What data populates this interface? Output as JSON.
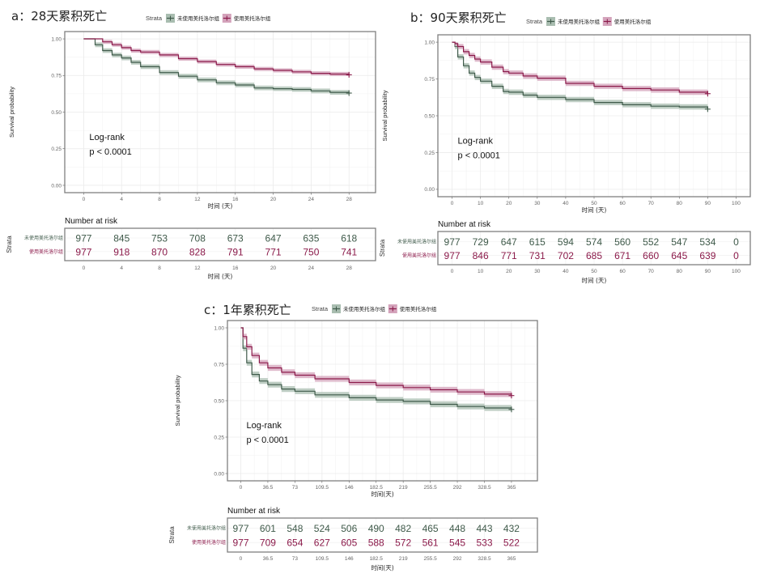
{
  "legend": {
    "title": "Strata",
    "groups": [
      "未使用美托洛尔组",
      "使用美托洛尔组"
    ]
  },
  "colors": {
    "group0": "#3f5a4a",
    "group0_band": "#a9bdb0",
    "group1": "#8b1a4a",
    "group1_band": "#d4a3bb",
    "grid": "#ebebeb",
    "frame": "#7f7f7f"
  },
  "chart_data": [
    {
      "id": "a",
      "type": "line",
      "title": "a：28天累积死亡",
      "xlabel": "时间 (天)",
      "ylabel": "Survival probability",
      "xlim": [
        -2,
        30.8
      ],
      "ylim": [
        -0.05,
        1.05
      ],
      "xticks": [
        0,
        4,
        8,
        12,
        16,
        20,
        24,
        28
      ],
      "xtick_labels": [
        "0",
        "4",
        "8",
        "12",
        "16",
        "20",
        "24",
        "28"
      ],
      "yticks": [
        0,
        0.25,
        0.5,
        0.75,
        1.0
      ],
      "ytick_labels": [
        "0.00",
        "0.25",
        "0.50",
        "0.75",
        "1.00"
      ],
      "annotation": [
        "Log-rank",
        "p < 0.0001"
      ],
      "series": [
        {
          "name": "未使用美托洛尔组",
          "x": [
            0,
            1,
            1.2,
            2,
            3,
            4,
            5,
            6,
            8,
            10,
            12,
            14,
            16,
            18,
            20,
            22,
            24,
            26,
            28
          ],
          "y": [
            1.0,
            1.0,
            0.96,
            0.92,
            0.89,
            0.87,
            0.84,
            0.81,
            0.77,
            0.745,
            0.72,
            0.7,
            0.685,
            0.665,
            0.66,
            0.655,
            0.645,
            0.635,
            0.63
          ],
          "ci_halfwidth": 0.016
        },
        {
          "name": "使用美托洛尔组",
          "x": [
            0,
            1,
            2,
            3,
            4,
            5,
            6,
            8,
            10,
            12,
            14,
            16,
            18,
            20,
            22,
            24,
            26,
            28
          ],
          "y": [
            1.0,
            1.0,
            0.98,
            0.96,
            0.94,
            0.92,
            0.91,
            0.89,
            0.865,
            0.845,
            0.825,
            0.81,
            0.795,
            0.785,
            0.775,
            0.765,
            0.76,
            0.755
          ],
          "ci_halfwidth": 0.014
        }
      ],
      "risk_table": {
        "title": "Number at risk",
        "strata_label": "Strata",
        "times": [
          0,
          4,
          8,
          12,
          16,
          20,
          24,
          28
        ],
        "rows": [
          {
            "name": "未使用美托洛尔组",
            "values": [
              977,
              845,
              753,
              708,
              673,
              647,
              635,
              618
            ]
          },
          {
            "name": "使用美托洛尔组",
            "values": [
              977,
              918,
              870,
              828,
              791,
              771,
              750,
              741
            ]
          }
        ]
      }
    },
    {
      "id": "b",
      "type": "line",
      "title": "b：90天累积死亡",
      "xlabel": "时间 (天)",
      "ylabel": "Survival probability",
      "xlim": [
        -5,
        105
      ],
      "ylim": [
        -0.05,
        1.05
      ],
      "xticks": [
        0,
        10,
        20,
        30,
        40,
        50,
        60,
        70,
        80,
        90,
        100
      ],
      "xtick_labels": [
        "0",
        "10",
        "20",
        "30",
        "40",
        "50",
        "60",
        "70",
        "80",
        "90",
        "100"
      ],
      "yticks": [
        0,
        0.25,
        0.5,
        0.75,
        1.0
      ],
      "ytick_labels": [
        "0.00",
        "0.25",
        "0.50",
        "0.75",
        "1.00"
      ],
      "annotation": [
        "Log-rank",
        "p < 0.0001"
      ],
      "series": [
        {
          "name": "未使用美托洛尔组",
          "x": [
            0,
            1,
            2,
            4,
            6,
            8,
            10,
            14,
            18,
            20,
            25,
            30,
            40,
            50,
            60,
            70,
            80,
            90
          ],
          "y": [
            1.0,
            0.97,
            0.9,
            0.84,
            0.79,
            0.76,
            0.735,
            0.7,
            0.665,
            0.66,
            0.64,
            0.625,
            0.61,
            0.59,
            0.575,
            0.565,
            0.56,
            0.545
          ],
          "ci_halfwidth": 0.018
        },
        {
          "name": "使用美托洛尔组",
          "x": [
            0,
            1,
            2,
            4,
            6,
            8,
            10,
            14,
            18,
            20,
            25,
            30,
            40,
            50,
            60,
            70,
            80,
            90
          ],
          "y": [
            1.0,
            0.99,
            0.97,
            0.935,
            0.91,
            0.885,
            0.865,
            0.83,
            0.8,
            0.79,
            0.77,
            0.755,
            0.72,
            0.7,
            0.685,
            0.675,
            0.66,
            0.65
          ],
          "ci_halfwidth": 0.018
        }
      ],
      "risk_table": {
        "title": "Number at risk",
        "strata_label": "Strata",
        "times": [
          0,
          10,
          20,
          30,
          40,
          50,
          60,
          70,
          80,
          90,
          100
        ],
        "rows": [
          {
            "name": "未使用美托洛尔组",
            "values": [
              977,
              729,
              647,
              615,
              594,
              574,
              560,
              552,
              547,
              534,
              0
            ]
          },
          {
            "name": "使用美托洛尔组",
            "values": [
              977,
              846,
              771,
              731,
              702,
              685,
              671,
              660,
              645,
              639,
              0
            ]
          }
        ]
      }
    },
    {
      "id": "c",
      "type": "line",
      "title": "c：1年累积死亡",
      "xlabel": "时间(天)",
      "ylabel": "Survival probability",
      "xlim": [
        -18,
        400
      ],
      "ylim": [
        -0.05,
        1.05
      ],
      "xticks": [
        0,
        36.5,
        73,
        109.5,
        146,
        182.5,
        219,
        255.5,
        292,
        328.5,
        365
      ],
      "xtick_labels": [
        "0",
        "36.5",
        "73",
        "109.5",
        "146",
        "182.5",
        "219",
        "255.5",
        "292",
        "328.5",
        "365"
      ],
      "yticks": [
        0,
        0.25,
        0.5,
        0.75,
        1.0
      ],
      "ytick_labels": [
        "0.00",
        "0.25",
        "0.50",
        "0.75",
        "1.00"
      ],
      "annotation": [
        "Log-rank",
        "p < 0.0001"
      ],
      "series": [
        {
          "name": "未使用美托洛尔组",
          "x": [
            0,
            3,
            8,
            15,
            25,
            36.5,
            55,
            73,
            100,
            146,
            182.5,
            219,
            255.5,
            292,
            328.5,
            365
          ],
          "y": [
            1.0,
            0.86,
            0.76,
            0.68,
            0.635,
            0.61,
            0.58,
            0.565,
            0.54,
            0.52,
            0.505,
            0.495,
            0.475,
            0.46,
            0.45,
            0.44
          ],
          "ci_halfwidth": 0.02
        },
        {
          "name": "使用美托洛尔组",
          "x": [
            0,
            3,
            8,
            15,
            25,
            36.5,
            55,
            73,
            100,
            146,
            182.5,
            219,
            255.5,
            292,
            328.5,
            365
          ],
          "y": [
            1.0,
            0.94,
            0.87,
            0.81,
            0.76,
            0.725,
            0.695,
            0.675,
            0.65,
            0.625,
            0.605,
            0.59,
            0.575,
            0.56,
            0.545,
            0.535
          ],
          "ci_halfwidth": 0.02
        }
      ],
      "risk_table": {
        "title": "Number at risk",
        "strata_label": "Strata",
        "times": [
          0,
          36.5,
          73,
          109.5,
          146,
          182.5,
          219,
          255.5,
          292,
          328.5,
          365
        ],
        "rows": [
          {
            "name": "未使用美托洛尔组",
            "values": [
              977,
              601,
              548,
              524,
              506,
              490,
              482,
              465,
              448,
              443,
              432
            ]
          },
          {
            "name": "使用美托洛尔组",
            "values": [
              977,
              709,
              654,
              627,
              605,
              588,
              572,
              561,
              545,
              533,
              522
            ]
          }
        ]
      }
    }
  ]
}
